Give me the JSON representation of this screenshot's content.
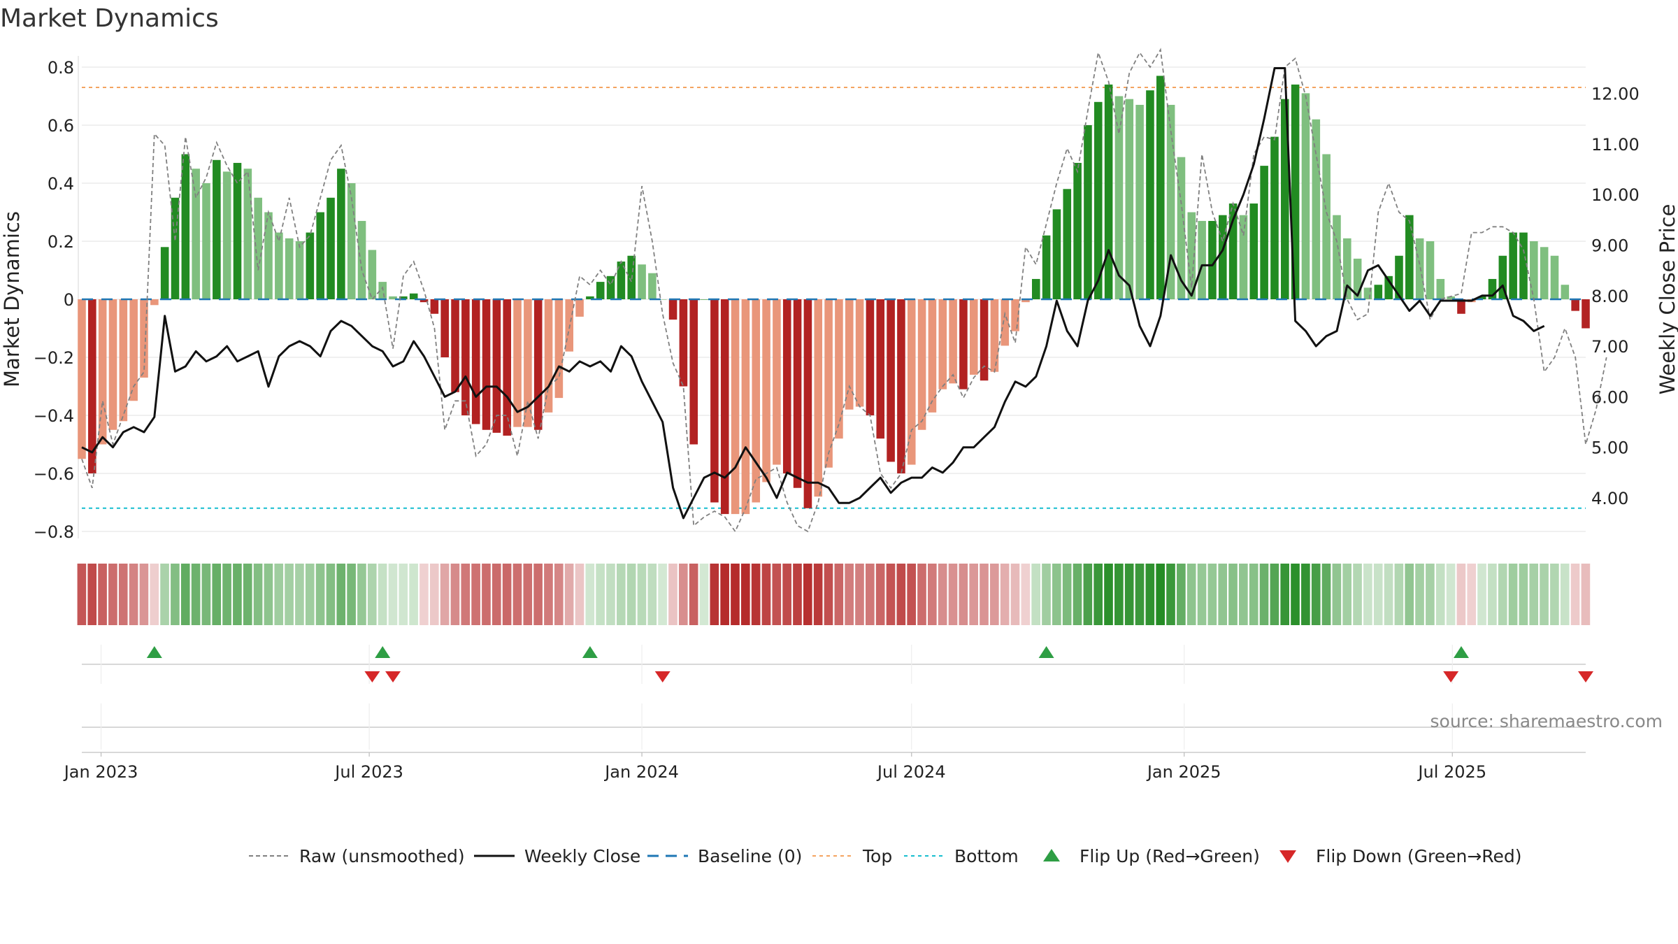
{
  "chart_data": {
    "type": "bar",
    "title": "Market Dynamics",
    "ylabel_left": "Market Dynamics",
    "ylabel_right": "Weekly Close Price",
    "source": "source: sharemaestro.com",
    "ylim_left": [
      -0.85,
      0.85
    ],
    "ylim_right": [
      3.2,
      13.0
    ],
    "x_start": "2022-12-19",
    "week_step_days": 7,
    "x_ticks": [
      {
        "label": "Jan 2023",
        "date": "2023-01-01"
      },
      {
        "label": "Jul 2023",
        "date": "2023-07-01"
      },
      {
        "label": "Jan 2024",
        "date": "2024-01-01"
      },
      {
        "label": "Jul 2024",
        "date": "2024-07-01"
      },
      {
        "label": "Jan 2025",
        "date": "2025-01-01"
      },
      {
        "label": "Jul 2025",
        "date": "2025-07-01"
      }
    ],
    "y_ticks_left": [
      "0.8",
      "0.6",
      "0.4",
      "0.2",
      "0",
      "−0.2",
      "−0.4",
      "−0.6",
      "−0.8"
    ],
    "y_ticks_left_values": [
      0.8,
      0.6,
      0.4,
      0.2,
      0,
      -0.2,
      -0.4,
      -0.6,
      -0.8
    ],
    "y_ticks_right": [
      "12.00",
      "11.00",
      "10.00",
      "9.00",
      "8.00",
      "7.00",
      "6.00",
      "5.00",
      "4.00"
    ],
    "y_ticks_right_values": [
      12,
      11,
      10,
      9,
      8,
      7,
      6,
      5,
      4
    ],
    "top_line": 0.73,
    "bottom_line": -0.72,
    "baseline": 0,
    "dynamics": [
      -0.55,
      -0.6,
      -0.5,
      -0.45,
      -0.42,
      -0.35,
      -0.27,
      -0.02,
      0.18,
      0.35,
      0.5,
      0.45,
      0.4,
      0.48,
      0.44,
      0.47,
      0.45,
      0.35,
      0.3,
      0.23,
      0.21,
      0.2,
      0.23,
      0.3,
      0.35,
      0.45,
      0.4,
      0.27,
      0.17,
      0.06,
      0.01,
      0.01,
      0.02,
      -0.01,
      -0.05,
      -0.2,
      -0.32,
      -0.4,
      -0.43,
      -0.45,
      -0.46,
      -0.47,
      -0.44,
      -0.44,
      -0.45,
      -0.39,
      -0.34,
      -0.18,
      -0.06,
      0.01,
      0.06,
      0.08,
      0.13,
      0.15,
      0.12,
      0.09,
      0,
      -0.07,
      -0.3,
      -0.5,
      0,
      -0.7,
      -0.74,
      -0.74,
      -0.74,
      -0.7,
      -0.63,
      -0.57,
      -0.6,
      -0.65,
      -0.72,
      -0.68,
      -0.58,
      -0.48,
      -0.38,
      -0.37,
      -0.4,
      -0.48,
      -0.56,
      -0.6,
      -0.57,
      -0.45,
      -0.39,
      -0.31,
      -0.29,
      -0.31,
      -0.26,
      -0.28,
      -0.25,
      -0.16,
      -0.11,
      -0.01,
      0.07,
      0.22,
      0.31,
      0.38,
      0.47,
      0.6,
      0.68,
      0.74,
      0.7,
      0.69,
      0.67,
      0.72,
      0.77,
      0.67,
      0.49,
      0.3,
      0.27,
      0.27,
      0.29,
      0.33,
      0.29,
      0.33,
      0.46,
      0.56,
      0.69,
      0.74,
      0.71,
      0.62,
      0.5,
      0.29,
      0.21,
      0.14,
      0.04,
      0.05,
      0.08,
      0.15,
      0.29,
      0.21,
      0.2,
      0.07,
      0.01,
      -0.05,
      -0.01,
      0.01,
      0.07,
      0.15,
      0.23,
      0.23,
      0.2,
      0.18,
      0.15,
      0.05,
      -0.04,
      -0.1
    ],
    "raw": [
      -0.55,
      -0.65,
      -0.35,
      -0.5,
      -0.4,
      -0.3,
      -0.25,
      0.57,
      0.53,
      0.2,
      0.56,
      0.35,
      0.42,
      0.54,
      0.46,
      0.4,
      0.44,
      0.1,
      0.3,
      0.2,
      0.35,
      0.18,
      0.22,
      0.35,
      0.48,
      0.53,
      0.35,
      0.1,
      0,
      0.04,
      -0.17,
      0.08,
      0.13,
      0.03,
      -0.1,
      -0.45,
      -0.35,
      -0.35,
      -0.54,
      -0.5,
      -0.4,
      -0.4,
      -0.54,
      -0.35,
      -0.48,
      -0.3,
      -0.27,
      -0.1,
      0.08,
      0.05,
      0.1,
      0.05,
      0.13,
      0.06,
      0.39,
      0.2,
      -0.05,
      -0.22,
      -0.3,
      -0.78,
      -0.75,
      -0.73,
      -0.75,
      -0.8,
      -0.72,
      -0.62,
      -0.6,
      -0.58,
      -0.7,
      -0.78,
      -0.8,
      -0.7,
      -0.53,
      -0.43,
      -0.3,
      -0.37,
      -0.4,
      -0.6,
      -0.65,
      -0.6,
      -0.45,
      -0.42,
      -0.35,
      -0.3,
      -0.26,
      -0.34,
      -0.27,
      -0.23,
      -0.25,
      -0.05,
      -0.15,
      0.18,
      0.12,
      0.26,
      0.4,
      0.52,
      0.44,
      0.65,
      0.85,
      0.75,
      0.57,
      0.78,
      0.85,
      0.8,
      0.86,
      0.58,
      0.33,
      0.04,
      0.5,
      0.3,
      0.2,
      0.33,
      0.22,
      0.5,
      0.56,
      0.55,
      0.8,
      0.83,
      0.7,
      0.5,
      0.3,
      0.2,
      0,
      -0.07,
      -0.05,
      0.3,
      0.4,
      0.3,
      0.27,
      0.12,
      -0.07,
      0,
      0.01,
      0.02,
      0.23,
      0.23,
      0.25,
      0.25,
      0.23,
      0.17,
      0,
      -0.25,
      -0.2,
      -0.1,
      -0.2,
      -0.5,
      -0.38,
      -0.2
    ],
    "weekly_close": [
      5.0,
      4.9,
      5.2,
      5.0,
      5.3,
      5.4,
      5.3,
      5.6,
      7.6,
      6.5,
      6.6,
      6.9,
      6.7,
      6.8,
      7.0,
      6.7,
      6.8,
      6.9,
      6.2,
      6.8,
      7.0,
      7.1,
      7.0,
      6.8,
      7.3,
      7.5,
      7.4,
      7.2,
      7.0,
      6.9,
      6.6,
      6.7,
      7.1,
      6.8,
      6.4,
      6.0,
      6.1,
      6.4,
      6.0,
      6.2,
      6.2,
      6.0,
      5.7,
      5.8,
      6.0,
      6.2,
      6.6,
      6.5,
      6.7,
      6.6,
      6.7,
      6.5,
      7.0,
      6.8,
      6.3,
      5.9,
      5.5,
      4.2,
      3.6,
      4.0,
      4.4,
      4.5,
      4.4,
      4.6,
      5.0,
      4.7,
      4.4,
      4.0,
      4.5,
      4.4,
      4.3,
      4.3,
      4.2,
      3.9,
      3.9,
      4.0,
      4.2,
      4.4,
      4.1,
      4.3,
      4.4,
      4.4,
      4.6,
      4.5,
      4.7,
      5.0,
      5.0,
      5.2,
      5.4,
      5.9,
      6.3,
      6.2,
      6.4,
      7.0,
      7.9,
      7.3,
      7.0,
      7.9,
      8.3,
      8.9,
      8.4,
      8.2,
      7.4,
      7.0,
      7.6,
      8.8,
      8.3,
      8.0,
      8.6,
      8.6,
      8.9,
      9.5,
      10.0,
      10.6,
      11.5,
      12.5,
      12.5,
      7.5,
      7.3,
      7.0,
      7.2,
      7.3,
      8.2,
      8.0,
      8.5,
      8.6,
      8.3,
      8.0,
      7.7,
      7.9,
      7.6,
      7.9,
      7.9,
      7.9,
      7.9,
      8.0,
      8.0,
      8.2,
      7.6,
      7.5,
      7.3,
      7.4
    ],
    "flips_up": [
      "2023-02-06",
      "2023-07-10",
      "2023-11-27",
      "2024-09-30",
      "2025-07-07"
    ],
    "flips_down": [
      "2023-07-03",
      "2023-07-17",
      "2024-01-15",
      "2025-06-30",
      "2025-09-29"
    ]
  },
  "legend": [
    {
      "label": "Raw (unsmoothed)",
      "color": "#808080",
      "style": "dashed-line"
    },
    {
      "label": "Weekly Close",
      "color": "#111111",
      "style": "solid-line"
    },
    {
      "label": "Baseline (0)",
      "color": "#1f77b4",
      "style": "long-dash-line"
    },
    {
      "label": "Top",
      "color": "#f4a460",
      "style": "dotted-line"
    },
    {
      "label": "Bottom",
      "color": "#17becf",
      "style": "dotted-line"
    },
    {
      "label": "Flip Up (Red→Green)",
      "color": "#2e9e44",
      "style": "triangle-up"
    },
    {
      "label": "Flip Down (Green→Red)",
      "color": "#d62728",
      "style": "triangle-down"
    }
  ],
  "colors": {
    "strong_green": "#228b22",
    "light_green": "#7fbf7f",
    "strong_red": "#b22222",
    "light_red": "#e9967a",
    "top_line": "#f4a460",
    "bottom_line": "#17becf",
    "baseline": "#1f77b4",
    "raw": "#808080",
    "close": "#111111",
    "flip_up": "#2e9e44",
    "flip_down": "#d62728"
  }
}
